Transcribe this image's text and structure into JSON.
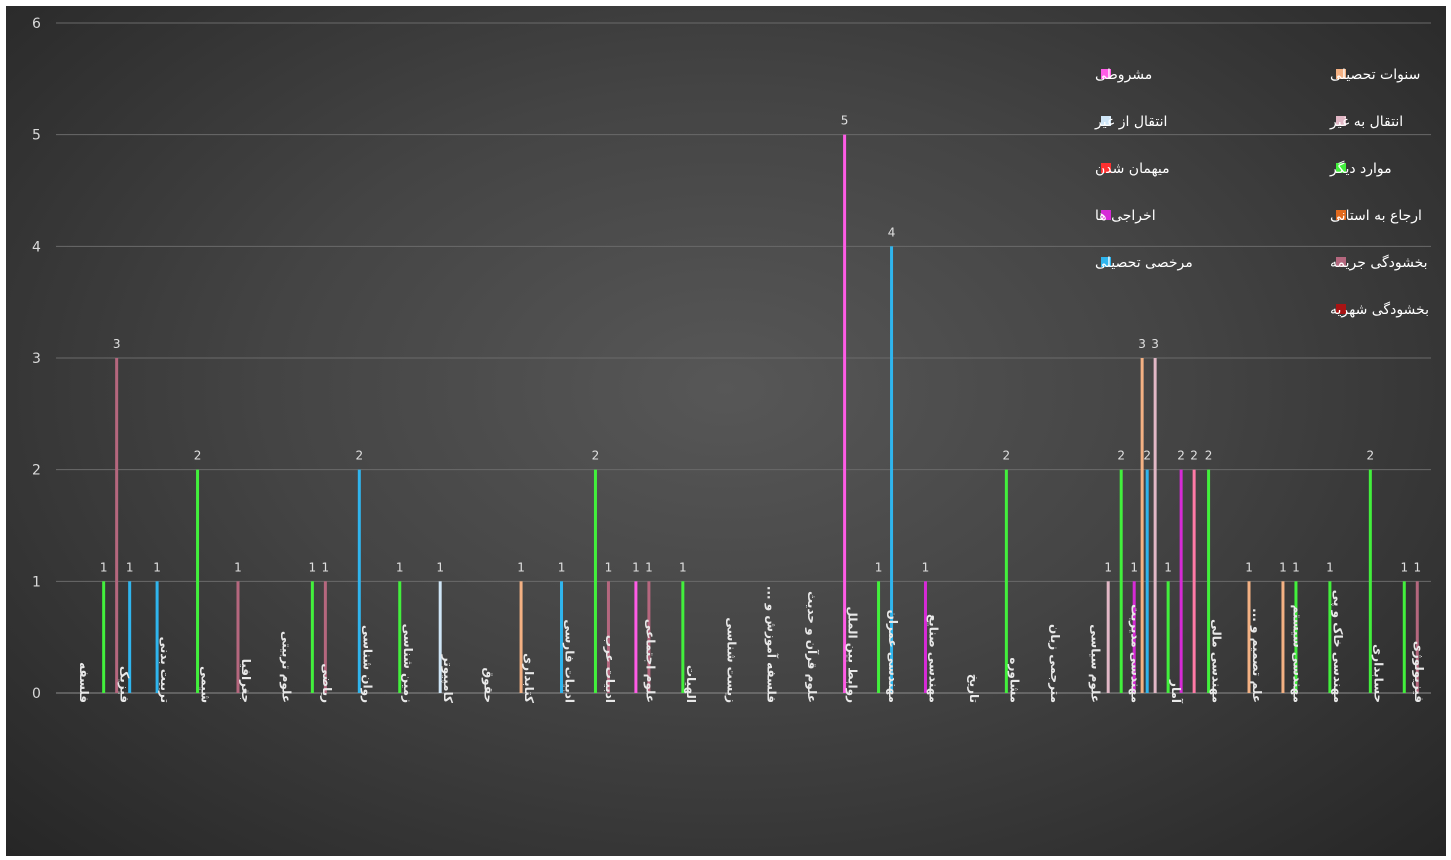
{
  "chart_data": {
    "type": "bar",
    "title": "",
    "xlabel": "",
    "ylabel": "",
    "ylim": [
      0,
      6
    ],
    "yticks": [
      0,
      1,
      2,
      3,
      4,
      5,
      6
    ],
    "grid": true,
    "legend_position": "top-right",
    "categories": [
      "فلسفه",
      "فیزیک",
      "تربیت بدنی",
      "شیمی",
      "جغرافیا",
      "علوم تربیتی",
      "ریاضی",
      "روان شناسی",
      "زمین شناسی",
      "کامپیوتر",
      "حقوق",
      "کتابداری",
      "ادبیات فارسی",
      "ادبیات عرب",
      "علوم اجتماعی",
      "الهیات",
      "زیست شناسی",
      "فلسفه آموزش و ...",
      "علوم قرآن و حدیث",
      "روابط بین الملل",
      "مهندسی عمران",
      "مهندسی صنایع",
      "تاریخ",
      "مشاوره",
      "مترجمی زبان",
      "علوم سیاسی",
      "مهندسی مدیریت",
      "آمار",
      "مهندسی مالی",
      "علم تصمیم و ...",
      "مهندسی سیستم",
      "مهندسی خاک و پی",
      "حسابداری",
      "فیزیولوژی"
    ],
    "series": [
      {
        "name": "سنوات تحصیلی",
        "color": "#f4b183",
        "values": [
          0,
          0,
          0,
          0,
          0,
          0,
          0,
          0,
          0,
          0,
          0,
          1,
          0,
          0,
          0,
          0,
          0,
          0,
          0,
          0,
          0,
          0,
          0,
          0,
          0,
          0,
          0,
          3,
          0,
          1,
          1,
          0,
          0,
          0
        ]
      },
      {
        "name": "مشروطی",
        "color": "#ff5ce6",
        "values": [
          0,
          0,
          0,
          0,
          0,
          0,
          0,
          0,
          0,
          0,
          0,
          0,
          0,
          0,
          1,
          0,
          0,
          0,
          0,
          5,
          0,
          0,
          0,
          0,
          0,
          0,
          0,
          0,
          0,
          0,
          0,
          0,
          0,
          0
        ]
      },
      {
        "name": "انتقال به غیر",
        "color": "#e2b8c6",
        "values": [
          0,
          0,
          0,
          0,
          0,
          0,
          0,
          0,
          0,
          0,
          0,
          0,
          0,
          0,
          0,
          0,
          0,
          0,
          0,
          0,
          0,
          0,
          0,
          0,
          0,
          0,
          1,
          3,
          0,
          0,
          0,
          0,
          0,
          0
        ]
      },
      {
        "name": "انتقال از غیر",
        "color": "#cfe6f7",
        "values": [
          0,
          0,
          0,
          0,
          0,
          0,
          0,
          0,
          0,
          1,
          0,
          0,
          0,
          0,
          0,
          0,
          0,
          0,
          0,
          0,
          0,
          0,
          0,
          0,
          0,
          0,
          0,
          0,
          0,
          0,
          0,
          0,
          0,
          0
        ]
      },
      {
        "name": "موارد دیگر",
        "color": "#42f03c",
        "values": [
          0,
          1,
          0,
          2,
          0,
          0,
          1,
          0,
          1,
          0,
          0,
          0,
          0,
          2,
          0,
          1,
          0,
          0,
          0,
          0,
          1,
          0,
          0,
          2,
          0,
          0,
          2,
          1,
          2,
          0,
          1,
          1,
          2,
          1
        ]
      },
      {
        "name": "میهمان شدن",
        "color": "#ff3030",
        "values": [
          0,
          0,
          0,
          0,
          0,
          0,
          0,
          0,
          0,
          0,
          0,
          0,
          0,
          0,
          0,
          0,
          0,
          0,
          0,
          0,
          0,
          0,
          0,
          0,
          0,
          0,
          0,
          0,
          0,
          0,
          0,
          0,
          0,
          0
        ]
      },
      {
        "name": "ارجاع به استانی",
        "color": "#e0691d",
        "values": [
          0,
          0,
          0,
          0,
          0,
          0,
          0,
          0,
          0,
          0,
          0,
          0,
          0,
          0,
          0,
          0,
          0,
          0,
          0,
          0,
          0,
          0,
          0,
          0,
          0,
          0,
          0,
          0,
          0,
          0,
          0,
          0,
          0,
          0
        ]
      },
      {
        "name": "اخراجی ها",
        "color": "#d62ad6",
        "values": [
          0,
          0,
          0,
          0,
          0,
          0,
          0,
          0,
          0,
          0,
          0,
          0,
          0,
          0,
          0,
          0,
          0,
          0,
          0,
          0,
          0,
          1,
          0,
          0,
          0,
          0,
          1,
          2,
          0,
          0,
          0,
          0,
          0,
          0
        ]
      },
      {
        "name": "بخشودگی جریمه",
        "color": "#b5677e",
        "values": [
          0,
          3,
          0,
          0,
          1,
          0,
          1,
          0,
          0,
          0,
          0,
          0,
          0,
          1,
          1,
          0,
          0,
          0,
          0,
          0,
          0,
          0,
          0,
          0,
          0,
          0,
          0,
          0,
          0,
          0,
          0,
          0,
          0,
          1
        ]
      },
      {
        "name": "مرخصی تحصیلی",
        "color": "#2fb5ee",
        "values": [
          0,
          1,
          1,
          0,
          0,
          0,
          0,
          2,
          0,
          0,
          0,
          0,
          1,
          0,
          0,
          0,
          0,
          0,
          0,
          0,
          4,
          0,
          0,
          0,
          0,
          0,
          2,
          0,
          0,
          0,
          0,
          0,
          0,
          0
        ]
      },
      {
        "name": "بخشودگی شهریه",
        "color": "#a81414",
        "values": [
          0,
          0,
          0,
          0,
          0,
          0,
          0,
          0,
          0,
          0,
          0,
          0,
          0,
          0,
          0,
          0,
          0,
          0,
          0,
          0,
          0,
          0,
          0,
          0,
          0,
          0,
          0,
          0,
          0,
          0,
          0,
          0,
          0,
          0
        ]
      },
      {
        "name": "",
        "color": "#ff7aa6",
        "values": [
          0,
          0,
          0,
          0,
          0,
          0,
          0,
          0,
          0,
          0,
          0,
          0,
          0,
          0,
          0,
          0,
          0,
          0,
          0,
          0,
          0,
          0,
          0,
          0,
          0,
          0,
          0,
          2,
          0,
          0,
          0,
          0,
          0,
          0
        ]
      }
    ]
  }
}
